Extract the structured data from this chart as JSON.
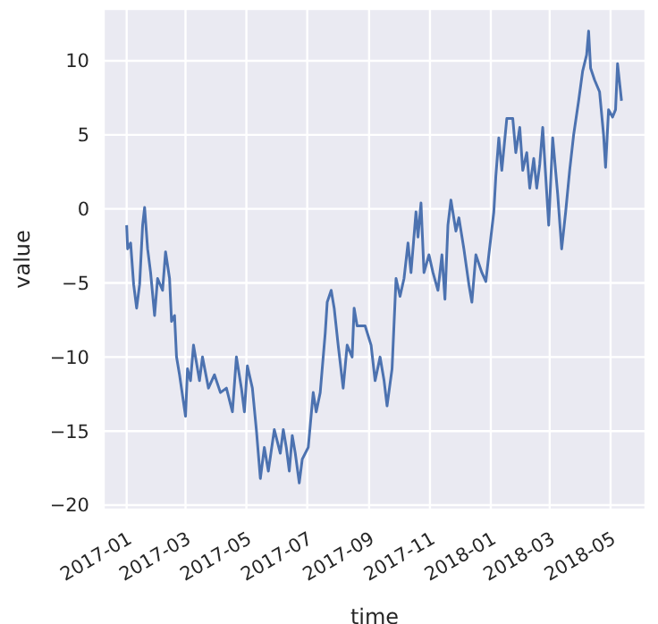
{
  "chart_data": {
    "type": "line",
    "xlabel": "time",
    "ylabel": "value",
    "grid": true,
    "xlim": [
      "2016-12-09",
      "2018-06-05"
    ],
    "xticks": [
      "2017-01",
      "2017-03",
      "2017-05",
      "2017-07",
      "2017-09",
      "2017-11",
      "2018-01",
      "2018-03",
      "2018-05"
    ],
    "ylim": [
      -20.3,
      13.5
    ],
    "yticks": [
      -20,
      -15,
      -10,
      -5,
      0,
      5,
      10
    ],
    "series": [
      {
        "color": "#4c72b0",
        "x": [
          "2017-01-01",
          "2017-01-02",
          "2017-01-05",
          "2017-01-08",
          "2017-01-11",
          "2017-01-14",
          "2017-01-17",
          "2017-01-19",
          "2017-01-22",
          "2017-01-25",
          "2017-01-29",
          "2017-02-01",
          "2017-02-06",
          "2017-02-09",
          "2017-02-13",
          "2017-02-15",
          "2017-02-18",
          "2017-02-20",
          "2017-02-23",
          "2017-03-01",
          "2017-03-03",
          "2017-03-06",
          "2017-03-09",
          "2017-03-15",
          "2017-03-18",
          "2017-03-24",
          "2017-03-30",
          "2017-04-05",
          "2017-04-11",
          "2017-04-17",
          "2017-04-21",
          "2017-04-26",
          "2017-04-29",
          "2017-05-02",
          "2017-05-07",
          "2017-05-11",
          "2017-05-15",
          "2017-05-19",
          "2017-05-23",
          "2017-05-29",
          "2017-06-04",
          "2017-06-07",
          "2017-06-10",
          "2017-06-13",
          "2017-06-16",
          "2017-06-19",
          "2017-06-23",
          "2017-06-26",
          "2017-07-02",
          "2017-07-07",
          "2017-07-10",
          "2017-07-14",
          "2017-07-19",
          "2017-07-21",
          "2017-07-25",
          "2017-07-28",
          "2017-08-01",
          "2017-08-06",
          "2017-08-10",
          "2017-08-15",
          "2017-08-17",
          "2017-08-20",
          "2017-08-28",
          "2017-09-03",
          "2017-09-07",
          "2017-09-12",
          "2017-09-16",
          "2017-09-19",
          "2017-09-24",
          "2017-09-28",
          "2017-10-02",
          "2017-10-06",
          "2017-10-10",
          "2017-10-13",
          "2017-10-18",
          "2017-10-20",
          "2017-10-23",
          "2017-10-26",
          "2017-10-31",
          "2017-11-04",
          "2017-11-09",
          "2017-11-13",
          "2017-11-16",
          "2017-11-19",
          "2017-11-22",
          "2017-11-27",
          "2017-11-30",
          "2017-12-05",
          "2017-12-10",
          "2017-12-13",
          "2017-12-17",
          "2017-12-23",
          "2017-12-27",
          "2017-12-30",
          "2018-01-04",
          "2018-01-06",
          "2018-01-09",
          "2018-01-12",
          "2018-01-17",
          "2018-01-23",
          "2018-01-26",
          "2018-01-30",
          "2018-02-02",
          "2018-02-06",
          "2018-02-09",
          "2018-02-13",
          "2018-02-16",
          "2018-02-19",
          "2018-02-22",
          "2018-02-25",
          "2018-02-28",
          "2018-03-04",
          "2018-03-09",
          "2018-03-13",
          "2018-03-17",
          "2018-03-21",
          "2018-03-25",
          "2018-03-30",
          "2018-04-03",
          "2018-04-07",
          "2018-04-09",
          "2018-04-11",
          "2018-04-15",
          "2018-04-20",
          "2018-04-24",
          "2018-04-26",
          "2018-04-29",
          "2018-05-03",
          "2018-05-06",
          "2018-05-08",
          "2018-05-12"
        ],
        "values": [
          -1.1,
          -2.7,
          -2.3,
          -5.1,
          -6.7,
          -5.1,
          -1.1,
          0.1,
          -2.7,
          -4.3,
          -7.2,
          -4.7,
          -5.5,
          -2.9,
          -4.7,
          -7.6,
          -7.2,
          -10,
          -11.2,
          -14,
          -10.8,
          -11.6,
          -9.2,
          -11.6,
          -10,
          -12.1,
          -11.2,
          -12.4,
          -12.1,
          -13.7,
          -10,
          -12.1,
          -13.7,
          -10.6,
          -12.1,
          -14.9,
          -18.2,
          -16.1,
          -17.7,
          -14.9,
          -16.5,
          -14.9,
          -16.1,
          -17.7,
          -15.3,
          -16.5,
          -18.5,
          -16.9,
          -16.1,
          -12.4,
          -13.7,
          -12.4,
          -8.4,
          -6.3,
          -5.5,
          -6.7,
          -9.2,
          -12.1,
          -9.2,
          -10,
          -6.7,
          -7.9,
          -7.9,
          -9.2,
          -11.6,
          -10,
          -11.6,
          -13.3,
          -10.8,
          -4.7,
          -5.9,
          -4.7,
          -2.3,
          -4.3,
          -0.2,
          -1.9,
          0.4,
          -4.3,
          -3.1,
          -4.3,
          -5.5,
          -3.1,
          -6.1,
          -1.1,
          0.6,
          -1.5,
          -0.6,
          -2.7,
          -5.1,
          -6.3,
          -3.1,
          -4.3,
          -4.9,
          -3.1,
          -0.2,
          2.2,
          4.8,
          2.6,
          6.1,
          6.1,
          3.8,
          5.5,
          2.6,
          3.8,
          1.4,
          3.4,
          1.4,
          3,
          5.5,
          2.2,
          -1.1,
          4.8,
          1,
          -2.7,
          -0.2,
          2.6,
          5,
          7.3,
          9.3,
          10.4,
          12,
          9.5,
          8.7,
          7.9,
          5,
          2.8,
          6.7,
          6.2,
          6.7,
          9.8,
          7.3
        ]
      }
    ]
  }
}
